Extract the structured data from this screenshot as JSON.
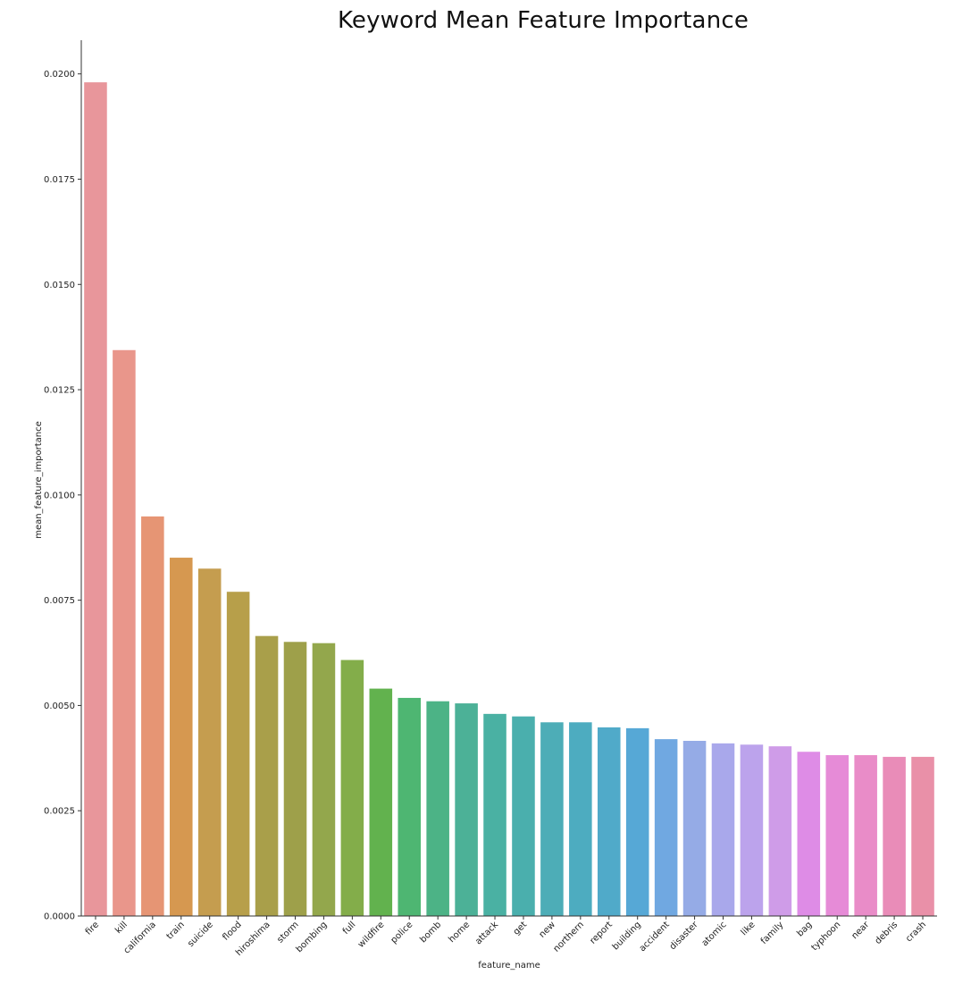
{
  "chart_data": {
    "type": "bar",
    "title": "Keyword Mean Feature Importance",
    "xlabel": "feature_name",
    "ylabel": "mean_feature_importance",
    "ylim": [
      0,
      0.0208
    ],
    "yticks": [
      "0.0000",
      "0.0025",
      "0.0050",
      "0.0075",
      "0.0100",
      "0.0125",
      "0.0150",
      "0.0175",
      "0.0200"
    ],
    "grid": false,
    "legend": "none",
    "categories": [
      "fire",
      "kill",
      "california",
      "train",
      "suicide",
      "flood",
      "hiroshima",
      "storm",
      "bombing",
      "full",
      "wildfire",
      "police",
      "bomb",
      "home",
      "attack",
      "get",
      "new",
      "northern",
      "report",
      "building",
      "accident",
      "disaster",
      "atomic",
      "like",
      "family",
      "bag",
      "typhoon",
      "near",
      "debris",
      "crash"
    ],
    "values": [
      0.0198,
      0.01344,
      0.00949,
      0.00851,
      0.00825,
      0.0077,
      0.00665,
      0.00651,
      0.00648,
      0.00608,
      0.0054,
      0.00518,
      0.0051,
      0.00505,
      0.0048,
      0.00474,
      0.0046,
      0.0046,
      0.00448,
      0.00446,
      0.0042,
      0.00416,
      0.0041,
      0.00407,
      0.00403,
      0.0039,
      0.00382,
      0.00382,
      0.00378,
      0.00378
    ],
    "colors": [
      "#e8969b",
      "#e9968b",
      "#e69574",
      "#d69850",
      "#c59d4f",
      "#b79f4a",
      "#a99f4a",
      "#9ea04a",
      "#93a74c",
      "#83ad4a",
      "#62b24e",
      "#4eb672",
      "#4cb386",
      "#4cb197",
      "#4ab1a3",
      "#4aafad",
      "#4dadb7",
      "#4dacc0",
      "#50aac9",
      "#56a8d6",
      "#70a8e1",
      "#95abe6",
      "#a9a8eb",
      "#bca3ec",
      "#cf9ce8",
      "#de8ce6",
      "#e68bd7",
      "#e98cc8",
      "#e98cb8",
      "#e990a8"
    ]
  }
}
